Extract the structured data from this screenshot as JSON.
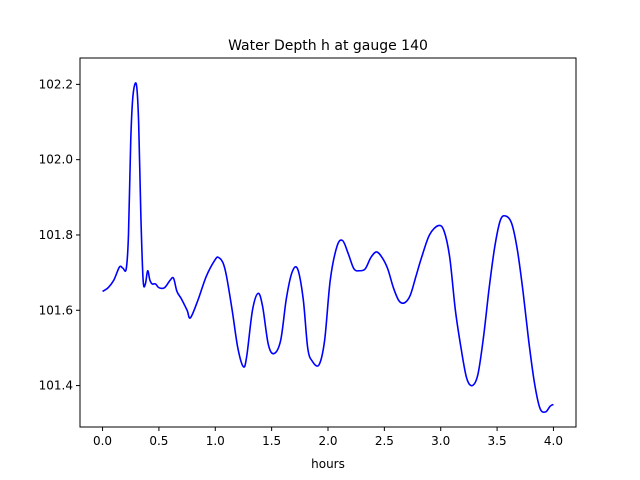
{
  "chart_data": {
    "type": "line",
    "title": "Water Depth h at gauge 140",
    "xlabel": "hours",
    "ylabel": "",
    "xlim": [
      -0.2,
      4.2
    ],
    "ylim": [
      101.29,
      102.27
    ],
    "xticks": [
      0.0,
      0.5,
      1.0,
      1.5,
      2.0,
      2.5,
      3.0,
      3.5,
      4.0
    ],
    "xtick_labels": [
      "0.0",
      "0.5",
      "1.0",
      "1.5",
      "2.0",
      "2.5",
      "3.0",
      "3.5",
      "4.0"
    ],
    "yticks": [
      101.4,
      101.6,
      101.8,
      102.0,
      102.2
    ],
    "ytick_labels": [
      "101.4",
      "101.6",
      "101.8",
      "102.0",
      "102.2"
    ],
    "grid": false,
    "series": [
      {
        "name": "",
        "color": "#0000ff",
        "x": [
          0.0,
          0.05,
          0.1,
          0.15,
          0.18,
          0.21,
          0.23,
          0.25,
          0.27,
          0.3,
          0.32,
          0.34,
          0.36,
          0.38,
          0.4,
          0.42,
          0.44,
          0.47,
          0.5,
          0.55,
          0.6,
          0.63,
          0.66,
          0.7,
          0.75,
          0.78,
          0.85,
          0.92,
          1.0,
          1.03,
          1.07,
          1.1,
          1.15,
          1.2,
          1.25,
          1.28,
          1.33,
          1.38,
          1.42,
          1.47,
          1.52,
          1.58,
          1.63,
          1.68,
          1.73,
          1.78,
          1.82,
          1.86,
          1.92,
          1.97,
          2.02,
          2.08,
          2.13,
          2.18,
          2.23,
          2.28,
          2.33,
          2.38,
          2.43,
          2.48,
          2.53,
          2.58,
          2.63,
          2.68,
          2.73,
          2.78,
          2.83,
          2.9,
          2.98,
          3.03,
          3.08,
          3.13,
          3.18,
          3.23,
          3.28,
          3.33,
          3.38,
          3.43,
          3.48,
          3.53,
          3.58,
          3.63,
          3.68,
          3.73,
          3.78,
          3.83,
          3.88,
          3.93,
          3.97,
          4.0
        ],
        "y": [
          101.65,
          101.66,
          101.68,
          101.715,
          101.712,
          101.71,
          101.8,
          102.05,
          102.17,
          102.2,
          102.1,
          101.85,
          101.68,
          101.67,
          101.705,
          101.68,
          101.67,
          101.67,
          101.66,
          101.66,
          101.68,
          101.685,
          101.65,
          101.63,
          101.6,
          101.58,
          101.63,
          101.69,
          101.735,
          101.74,
          101.725,
          101.69,
          101.6,
          101.5,
          101.45,
          101.48,
          101.6,
          101.645,
          101.61,
          101.51,
          101.485,
          101.52,
          101.63,
          101.7,
          101.71,
          101.63,
          101.5,
          101.465,
          101.455,
          101.52,
          101.68,
          101.77,
          101.785,
          101.75,
          101.71,
          101.705,
          101.71,
          101.74,
          101.755,
          101.74,
          101.71,
          101.66,
          101.625,
          101.62,
          101.64,
          101.69,
          101.74,
          101.8,
          101.825,
          101.81,
          101.74,
          101.6,
          101.5,
          101.42,
          101.4,
          101.43,
          101.53,
          101.66,
          101.77,
          101.84,
          101.85,
          101.83,
          101.76,
          101.65,
          101.52,
          101.41,
          101.34,
          101.33,
          101.345,
          101.35
        ]
      }
    ]
  }
}
